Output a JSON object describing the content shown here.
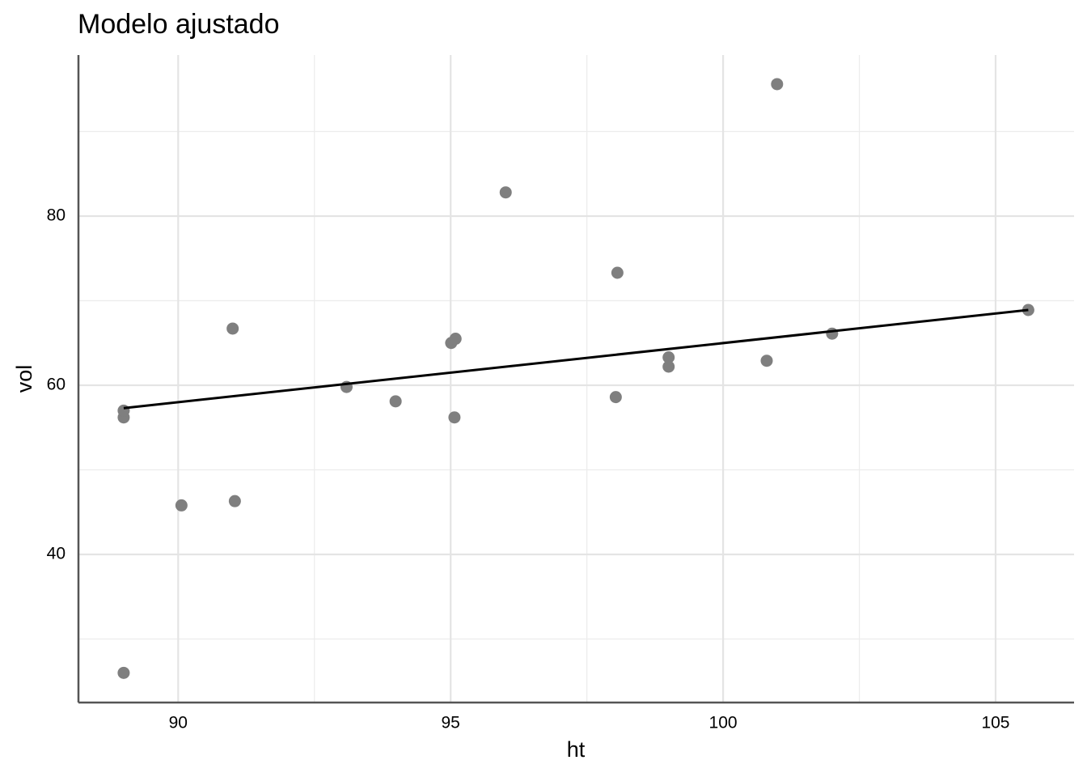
{
  "chart_data": {
    "type": "scatter",
    "title": "Modelo ajustado",
    "x_label": "ht",
    "y_label": "vol",
    "x": [
      89,
      89,
      89,
      90.06,
      91,
      91.04,
      93.09,
      93.99,
      95.01,
      95.09,
      95.07,
      96.01,
      98.03,
      98.06,
      99,
      99,
      100.8,
      100.99,
      102,
      105.6
    ],
    "values": [
      26.0,
      56.2,
      57.0,
      45.8,
      66.7,
      46.3,
      59.8,
      58.1,
      65.0,
      65.5,
      56.2,
      82.8,
      58.6,
      73.3,
      63.3,
      62.2,
      62.9,
      95.6,
      66.1,
      68.9
    ],
    "color": "#7f7f7f",
    "fit": {
      "x": [
        89,
        105.6
      ],
      "y": [
        57.3,
        68.9
      ],
      "color": "#000000"
    },
    "xlim": [
      88.17,
      106.44
    ],
    "ylim": [
      22.49,
      99.04
    ],
    "xticks": [
      90,
      95,
      100,
      105
    ],
    "yticks": [
      40,
      60,
      80
    ],
    "x_minor_ticks": [
      92.5,
      97.5,
      102.5
    ],
    "y_minor_ticks": [
      30,
      50,
      70,
      90
    ],
    "grid": true
  }
}
